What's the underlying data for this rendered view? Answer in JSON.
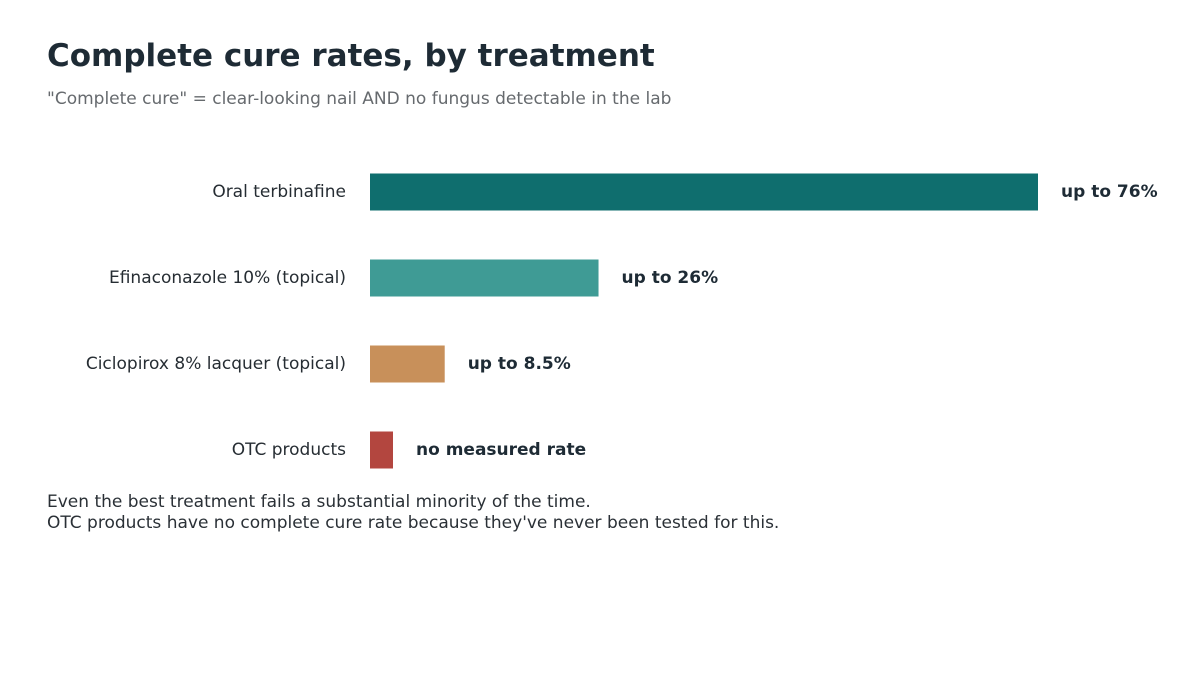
{
  "header": {
    "title": "Complete cure rates, by treatment",
    "subtitle": "\"Complete cure\" = clear-looking nail AND no fungus detectable in the lab"
  },
  "chart_data": {
    "type": "bar",
    "orientation": "horizontal",
    "title": "Complete cure rates, by treatment",
    "subtitle": "\"Complete cure\" = clear-looking nail AND no fungus detectable in the lab",
    "categories": [
      "Oral terbinafine",
      "Efinaconazole 10% (topical)",
      "Ciclopirox 8% lacquer (topical)",
      "OTC products"
    ],
    "values": [
      76,
      26,
      8.5,
      0
    ],
    "value_labels": [
      "up to 76%",
      "up to 26%",
      "up to 8.5%",
      "no measured rate"
    ],
    "colors": [
      "#0f6e6e",
      "#3f9b95",
      "#c8905a",
      "#b3463f"
    ],
    "xlim": [
      0,
      76
    ],
    "unit": "%",
    "grid": false,
    "legend": "none",
    "axes_visible": false
  },
  "notes": [
    "Even the best treatment fails a substantial minority of the time.",
    "OTC products have no complete cure rate because they've never been tested for this."
  ]
}
